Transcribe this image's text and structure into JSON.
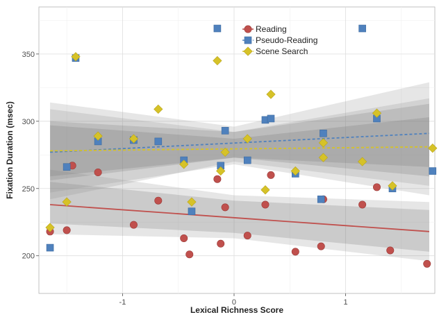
{
  "chart_data": {
    "type": "scatter",
    "title": "",
    "xlabel": "Lexical Richness Score",
    "ylabel": "Fixation Duration (msec)",
    "xlim": [
      -1.75,
      1.8
    ],
    "ylim": [
      172,
      385
    ],
    "x_ticks": [
      -1,
      0,
      1
    ],
    "x_tick_labels": [
      "-1",
      "0",
      "1"
    ],
    "y_ticks": [
      200,
      250,
      300,
      350
    ],
    "y_tick_labels": [
      "200",
      "250",
      "300",
      "350"
    ],
    "grid": true,
    "legend_position": "top-center",
    "series": [
      {
        "name": "Reading",
        "marker": "circle",
        "line_style": "solid",
        "color": "#c0504d",
        "points": [
          [
            -1.65,
            218
          ],
          [
            -1.5,
            219
          ],
          [
            -1.45,
            267
          ],
          [
            -1.22,
            262
          ],
          [
            -0.9,
            223
          ],
          [
            -0.68,
            241
          ],
          [
            -0.45,
            213
          ],
          [
            -0.4,
            201
          ],
          [
            -0.15,
            257
          ],
          [
            -0.12,
            209
          ],
          [
            -0.08,
            236
          ],
          [
            0.12,
            215
          ],
          [
            0.28,
            238
          ],
          [
            0.33,
            260
          ],
          [
            0.55,
            203
          ],
          [
            0.8,
            242
          ],
          [
            0.78,
            207
          ],
          [
            1.15,
            238
          ],
          [
            1.28,
            251
          ],
          [
            1.4,
            204
          ],
          [
            1.73,
            194
          ]
        ],
        "trend": [
          [
            -1.65,
            238
          ],
          [
            1.75,
            218
          ]
        ],
        "band_inner": [
          [
            -1.65,
            255,
            224
          ],
          [
            0,
            241,
            217
          ],
          [
            1.75,
            234,
            203
          ]
        ],
        "band_outer": [
          [
            -1.65,
            264,
            216
          ],
          [
            0,
            245,
            213
          ],
          [
            1.75,
            240,
            196
          ]
        ]
      },
      {
        "name": "Pseudo-Reading",
        "marker": "square",
        "line_style": "dashed",
        "color": "#4f81bd",
        "points": [
          [
            -1.65,
            206
          ],
          [
            -1.5,
            266
          ],
          [
            -1.42,
            347
          ],
          [
            -1.22,
            285
          ],
          [
            -0.9,
            286
          ],
          [
            -0.68,
            285
          ],
          [
            -0.45,
            271
          ],
          [
            -0.38,
            233
          ],
          [
            -0.15,
            369
          ],
          [
            -0.12,
            267
          ],
          [
            -0.08,
            293
          ],
          [
            0.12,
            271
          ],
          [
            0.28,
            301
          ],
          [
            0.33,
            302
          ],
          [
            0.55,
            261
          ],
          [
            0.78,
            242
          ],
          [
            0.8,
            291
          ],
          [
            1.15,
            369
          ],
          [
            1.28,
            302
          ],
          [
            1.42,
            250
          ],
          [
            1.78,
            263
          ]
        ],
        "trend": [
          [
            -1.65,
            277
          ],
          [
            1.75,
            291
          ]
        ],
        "band_inner": [
          [
            -1.65,
            300,
            256
          ],
          [
            0,
            292,
            273
          ],
          [
            1.75,
            313,
            266
          ]
        ],
        "band_outer": [
          [
            -1.65,
            314,
            242
          ],
          [
            0,
            296,
            270
          ],
          [
            1.75,
            329,
            252
          ]
        ]
      },
      {
        "name": "Scene Search",
        "marker": "diamond",
        "line_style": "dashed",
        "color": "#d6c228",
        "points": [
          [
            -1.65,
            221
          ],
          [
            -1.5,
            240
          ],
          [
            -1.42,
            348
          ],
          [
            -1.22,
            289
          ],
          [
            -0.9,
            287
          ],
          [
            -0.68,
            309
          ],
          [
            -0.45,
            268
          ],
          [
            -0.38,
            240
          ],
          [
            -0.15,
            345
          ],
          [
            -0.12,
            263
          ],
          [
            -0.08,
            277
          ],
          [
            0.12,
            287
          ],
          [
            0.28,
            249
          ],
          [
            0.33,
            320
          ],
          [
            0.55,
            263
          ],
          [
            0.8,
            273
          ],
          [
            0.8,
            284
          ],
          [
            1.15,
            270
          ],
          [
            1.28,
            306
          ],
          [
            1.42,
            252
          ],
          [
            1.78,
            280
          ]
        ],
        "trend": [
          [
            -1.65,
            278
          ],
          [
            1.75,
            281
          ]
        ],
        "band_inner": [
          [
            -1.65,
            297,
            259
          ],
          [
            0,
            287,
            273
          ],
          [
            1.75,
            303,
            259
          ]
        ],
        "band_outer": [
          [
            -1.65,
            309,
            247
          ],
          [
            0,
            292,
            268
          ],
          [
            1.75,
            317,
            245
          ]
        ]
      }
    ]
  }
}
